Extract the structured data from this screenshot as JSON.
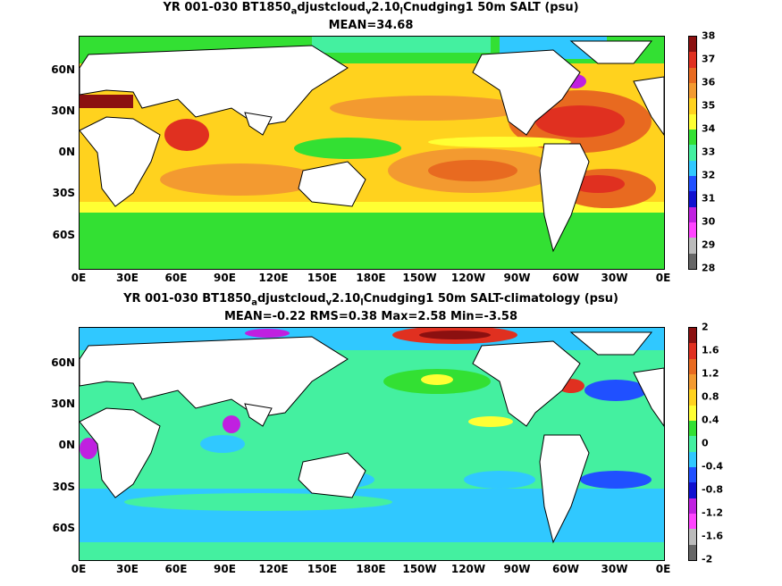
{
  "panels": [
    {
      "title_line1": {
        "pre": "YR 001-030 BT1850",
        "s1": "a",
        "mid1": "djustcloud",
        "s2": "v",
        "mid2": "2.10",
        "s3": "l",
        "post": "Cnudging1 50m SALT (psu)"
      },
      "title_line2": "MEAN=34.68",
      "colorbar_labels": [
        "38",
        "37",
        "36",
        "35",
        "34",
        "33",
        "32",
        "31",
        "30",
        "29",
        "28"
      ],
      "colorbar_colors": [
        "#8b1010",
        "#e03020",
        "#e86a20",
        "#f39a30",
        "#ffd21e",
        "#ffff33",
        "#33e033",
        "#44f0a0",
        "#30c8ff",
        "#2050ff",
        "#1010d0",
        "#c020e0",
        "#ff44ff",
        "#bbbbbb",
        "#666666"
      ]
    },
    {
      "title_line1": {
        "pre": "YR 001-030 BT1850",
        "s1": "a",
        "mid1": "djustcloud",
        "s2": "v",
        "mid2": "2.10",
        "s3": "l",
        "post": "Cnudging1 50m SALT-climatology (psu)"
      },
      "title_line2": "MEAN=-0.22   RMS=0.38   Max=2.58   Min=-3.58",
      "colorbar_labels": [
        "2",
        "1.6",
        "1.2",
        "0.8",
        "0.4",
        "0",
        "-0.4",
        "-0.8",
        "-1.2",
        "-1.6",
        "-2"
      ],
      "colorbar_colors": [
        "#8b1010",
        "#e03020",
        "#e86a20",
        "#f39a30",
        "#ffd21e",
        "#ffff33",
        "#33e033",
        "#44f0a0",
        "#30c8ff",
        "#2050ff",
        "#1010d0",
        "#c020e0",
        "#ff44ff",
        "#bbbbbb",
        "#666666"
      ]
    }
  ],
  "x_ticks": [
    "0E",
    "30E",
    "60E",
    "90E",
    "120E",
    "150E",
    "180E",
    "150W",
    "120W",
    "90W",
    "60W",
    "30W",
    "0E"
  ],
  "y_ticks": [
    "60N",
    "30N",
    "0N",
    "30S",
    "60S"
  ]
}
